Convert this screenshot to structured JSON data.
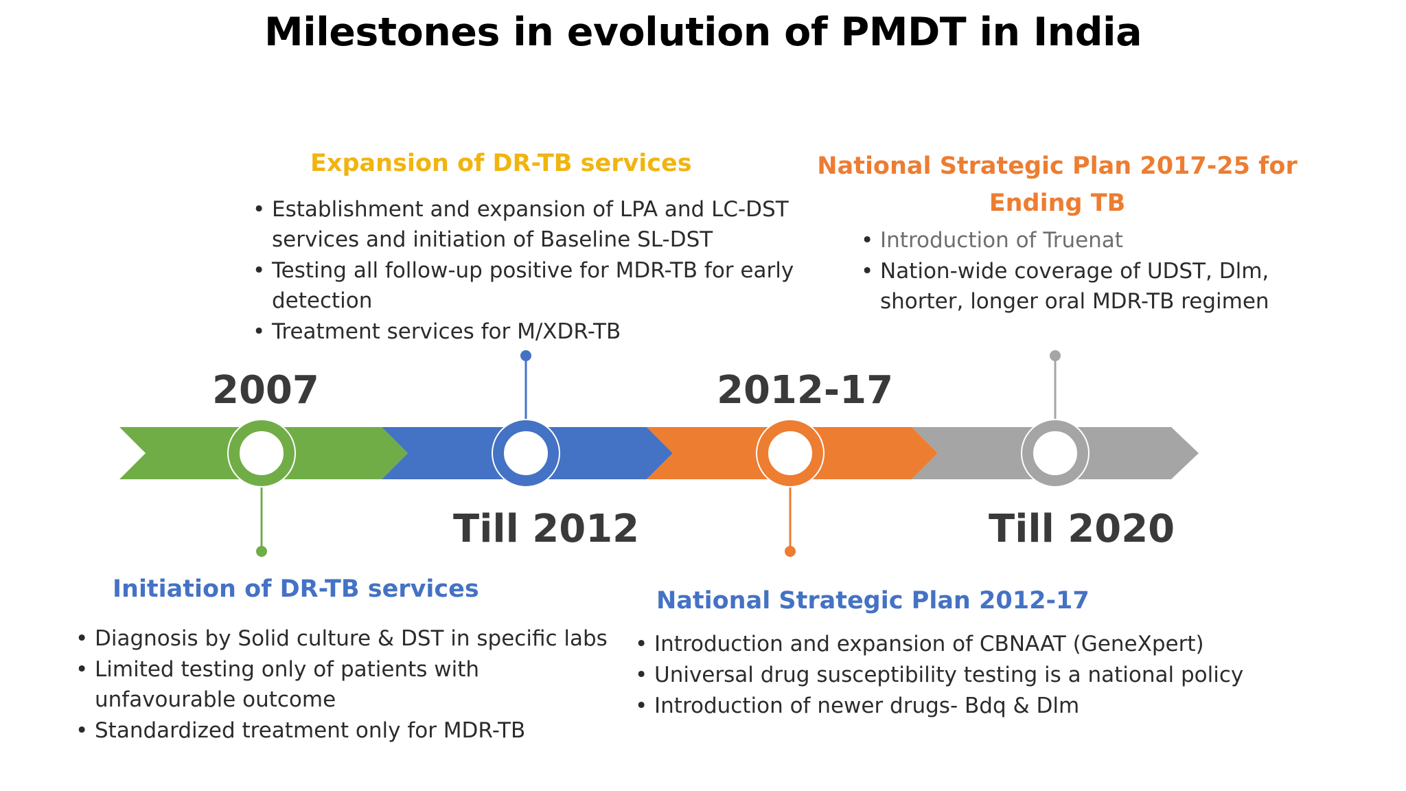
{
  "title": "Milestones in evolution of PMDT in India",
  "colors": {
    "green": "#71AD47",
    "blue": "#4472C4",
    "orange": "#ED7D31",
    "gray": "#A5A5A5",
    "heading_yellow": "#F1B40F",
    "heading_orange": "#ED7D31",
    "heading_blue": "#4472C4"
  },
  "timeline": {
    "stages": [
      {
        "year_label": "2007",
        "year_position": "above",
        "color": "#71AD47",
        "heading": "Initiation of DR-TB services",
        "heading_color": "#4472C4",
        "items": [
          "Diagnosis by Solid culture & DST in specific labs",
          "Limited testing only of patients with unfavourable outcome",
          "Standardized treatment only for MDR-TB"
        ]
      },
      {
        "year_label": "Till 2012",
        "year_position": "below",
        "color": "#4472C4",
        "heading": "Expansion of DR-TB services",
        "heading_color": "#F1B40F",
        "items": [
          "Establishment and expansion of LPA and LC-DST services and initiation of Baseline SL-DST",
          "Testing all follow-up positive for MDR-TB for early detection",
          "Treatment services for M/XDR-TB"
        ]
      },
      {
        "year_label": "2012-17",
        "year_position": "above",
        "color": "#ED7D31",
        "heading": "National Strategic Plan 2012-17",
        "heading_color": "#4472C4",
        "items": [
          "Introduction and expansion of CBNAAT (GeneXpert)",
          "Universal drug susceptibility testing is a national policy",
          "Introduction of newer drugs- Bdq & Dlm"
        ]
      },
      {
        "year_label": "Till 2020",
        "year_position": "below",
        "color": "#A5A5A5",
        "heading": "National Strategic Plan 2017-25 for Ending TB",
        "heading_color": "#ED7D31",
        "items": [
          "Introduction of Truenat",
          "Nation-wide coverage of UDST, Dlm, shorter, longer oral MDR-TB regimen"
        ]
      }
    ]
  }
}
